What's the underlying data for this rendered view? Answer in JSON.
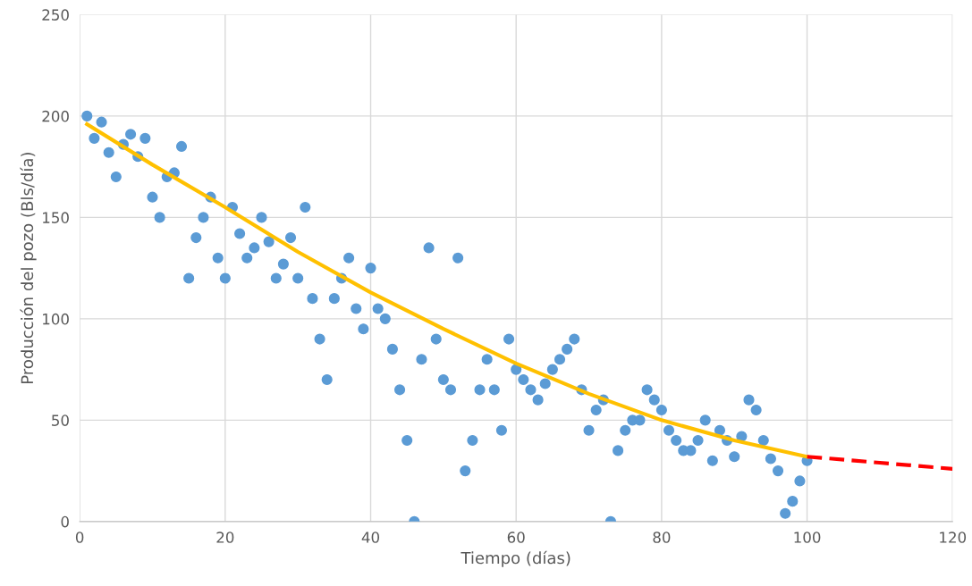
{
  "chart_data": {
    "type": "scatter",
    "xlabel": "Tiempo (días)",
    "ylabel": "Producción del pozo (Bls/día)",
    "xlim": [
      0,
      120
    ],
    "ylim": [
      0,
      250
    ],
    "xticks": [
      0,
      20,
      40,
      60,
      80,
      100,
      120
    ],
    "yticks": [
      0,
      50,
      100,
      150,
      200,
      250
    ],
    "grid": true,
    "marker": "circle",
    "series": [
      {
        "color": "#5b9bd5",
        "x": [
          1,
          2,
          3,
          4,
          5,
          6,
          7,
          8,
          9,
          10,
          11,
          12,
          13,
          14,
          15,
          16,
          17,
          18,
          19,
          20,
          21,
          22,
          23,
          24,
          25,
          26,
          27,
          28,
          29,
          30,
          31,
          32,
          33,
          34,
          35,
          36,
          37,
          38,
          39,
          40,
          41,
          42,
          43,
          44,
          45,
          46,
          47,
          48,
          49,
          50,
          51,
          52,
          53,
          54,
          55,
          56,
          57,
          58,
          59,
          60,
          61,
          62,
          63,
          64,
          65,
          66,
          67,
          68,
          69,
          70,
          71,
          72,
          73,
          74,
          75,
          76,
          77,
          78,
          79,
          80,
          81,
          82,
          83,
          84,
          85,
          86,
          87,
          88,
          89,
          90,
          91,
          92,
          93,
          94,
          95,
          96,
          97,
          98,
          99,
          100
        ],
        "values": [
          200,
          189,
          197,
          182,
          170,
          186,
          191,
          180,
          189,
          160,
          150,
          170,
          172,
          185,
          120,
          140,
          150,
          160,
          130,
          120,
          155,
          142,
          130,
          135,
          150,
          138,
          120,
          127,
          140,
          120,
          155,
          110,
          90,
          70,
          110,
          120,
          130,
          105,
          95,
          125,
          105,
          100,
          85,
          65,
          40,
          0,
          80,
          135,
          90,
          70,
          65,
          130,
          25,
          40,
          65,
          80,
          65,
          45,
          90,
          75,
          70,
          65,
          60,
          68,
          75,
          80,
          85,
          90,
          65,
          45,
          55,
          60,
          0,
          35,
          45,
          50,
          50,
          65,
          60,
          55,
          45,
          40,
          35,
          35,
          40,
          50,
          30,
          45,
          40,
          32,
          42,
          60,
          55,
          40,
          31,
          25,
          4,
          10,
          20,
          30
        ]
      },
      {
        "type": "line",
        "color": "#ffc000",
        "line_style": "solid",
        "marker": "none",
        "x": [
          1,
          10,
          20,
          30,
          40,
          50,
          60,
          70,
          80,
          90,
          100
        ],
        "values": [
          196,
          176,
          155,
          133,
          113,
          95,
          78,
          63,
          50,
          40,
          32
        ]
      },
      {
        "type": "line",
        "color": "#ff0000",
        "line_style": "dashed",
        "marker": "none",
        "x": [
          100,
          110,
          120
        ],
        "values": [
          32,
          29,
          26
        ]
      }
    ]
  }
}
